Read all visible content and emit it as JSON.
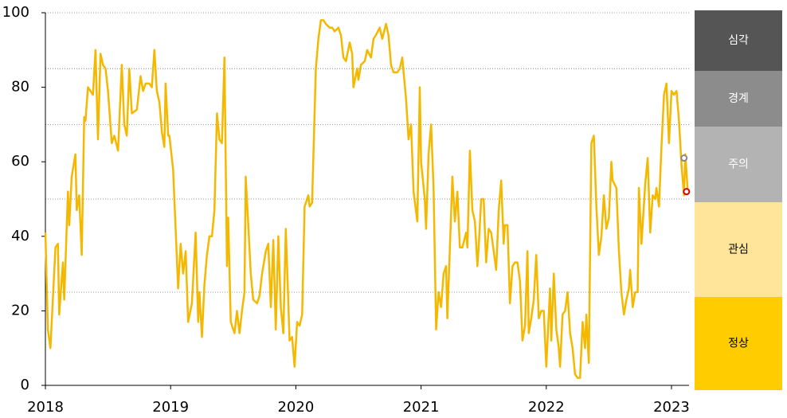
{
  "chart_data": {
    "type": "line",
    "xlim": [
      2018,
      2023.14
    ],
    "xticks": [
      2018,
      2019,
      2020,
      2021,
      2022,
      2023
    ],
    "ylim": [
      0,
      100
    ],
    "yticks": [
      0,
      20,
      40,
      60,
      80,
      100
    ],
    "grid_lines": [
      25,
      50,
      70,
      85,
      100
    ],
    "series": [
      {
        "color": "#f5b800",
        "x": [
          2018.0,
          2018.02,
          2018.04,
          2018.08,
          2018.1,
          2018.11,
          2018.14,
          2018.15,
          2018.18,
          2018.19,
          2018.21,
          2018.24,
          2018.25,
          2018.27,
          2018.29,
          2018.31,
          2018.32,
          2018.34,
          2018.38,
          2018.4,
          2018.42,
          2018.44,
          2018.46,
          2018.48,
          2018.5,
          2018.53,
          2018.55,
          2018.58,
          2018.61,
          2018.63,
          2018.65,
          2018.67,
          2018.69,
          2018.73,
          2018.76,
          2018.78,
          2018.8,
          2018.83,
          2018.85,
          2018.87,
          2018.89,
          2018.91,
          2018.93,
          2018.95,
          2018.96,
          2018.98,
          2018.99,
          2019.02,
          2019.04,
          2019.06,
          2019.08,
          2019.1,
          2019.12,
          2019.14,
          2019.17,
          2019.2,
          2019.22,
          2019.23,
          2019.25,
          2019.27,
          2019.29,
          2019.31,
          2019.33,
          2019.35,
          2019.37,
          2019.39,
          2019.41,
          2019.43,
          2019.45,
          2019.46,
          2019.48,
          2019.51,
          2019.53,
          2019.55,
          2019.57,
          2019.59,
          2019.6,
          2019.62,
          2019.64,
          2019.66,
          2019.69,
          2019.71,
          2019.73,
          2019.76,
          2019.78,
          2019.8,
          2019.82,
          2019.84,
          2019.86,
          2019.88,
          2019.9,
          2019.92,
          2019.94,
          2019.95,
          2019.97,
          2019.99,
          2020.01,
          2020.03,
          2020.05,
          2020.07,
          2020.1,
          2020.11,
          2020.13,
          2020.16,
          2020.18,
          2020.2,
          2020.22,
          2020.24,
          2020.27,
          2020.29,
          2020.31,
          2020.34,
          2020.36,
          2020.38,
          2020.4,
          2020.43,
          2020.45,
          2020.46,
          2020.49,
          2020.5,
          2020.52,
          2020.55,
          2020.57,
          2020.6,
          2020.62,
          2020.64,
          2020.67,
          2020.69,
          2020.72,
          2020.74,
          2020.76,
          2020.78,
          2020.81,
          2020.83,
          2020.85,
          2020.88,
          2020.9,
          2020.92,
          2020.94,
          2020.97,
          2020.99,
          2021.0,
          2021.03,
          2021.04,
          2021.06,
          2021.08,
          2021.1,
          2021.12,
          2021.14,
          2021.16,
          2021.18,
          2021.2,
          2021.21,
          2021.24,
          2021.25,
          2021.27,
          2021.29,
          2021.31,
          2021.33,
          2021.36,
          2021.37,
          2021.39,
          2021.41,
          2021.43,
          2021.45,
          2021.46,
          2021.48,
          2021.5,
          2021.52,
          2021.54,
          2021.56,
          2021.58,
          2021.6,
          2021.62,
          2021.64,
          2021.66,
          2021.67,
          2021.69,
          2021.71,
          2021.73,
          2021.75,
          2021.77,
          2021.79,
          2021.81,
          2021.83,
          2021.85,
          2021.86,
          2021.88,
          2021.9,
          2021.92,
          2021.94,
          2021.96,
          2021.98,
          2022.0,
          2022.03,
          2022.04,
          2022.06,
          2022.08,
          2022.1,
          2022.11,
          2022.13,
          2022.15,
          2022.17,
          2022.19,
          2022.21,
          2022.23,
          2022.25,
          2022.27,
          2022.29,
          2022.31,
          2022.32,
          2022.34,
          2022.36,
          2022.38,
          2022.4,
          2022.42,
          2022.44,
          2022.46,
          2022.48,
          2022.5,
          2022.52,
          2022.53,
          2022.56,
          2022.58,
          2022.6,
          2022.62,
          2022.64,
          2022.66,
          2022.67,
          2022.69,
          2022.71,
          2022.73,
          2022.74,
          2022.76,
          2022.79,
          2022.81,
          2022.83,
          2022.85,
          2022.87,
          2022.88,
          2022.9,
          2022.92,
          2022.94,
          2022.96,
          2022.98,
          2023.0,
          2023.02,
          2023.04,
          2023.06,
          2023.08,
          2023.1,
          2023.11,
          2023.13
        ],
        "values": [
          41,
          15,
          10,
          37,
          38,
          19,
          33,
          23,
          52,
          43,
          56,
          62,
          47,
          51,
          35,
          72,
          71,
          80,
          78,
          90,
          66,
          89,
          86,
          85,
          79,
          65,
          67,
          63,
          86,
          70,
          67,
          85,
          73,
          74,
          83,
          79,
          81,
          81,
          80,
          90,
          79,
          76,
          68,
          64,
          81,
          67,
          67,
          58,
          42,
          26,
          38,
          30,
          36,
          17,
          22,
          41,
          17,
          25,
          13,
          27,
          35,
          40,
          40,
          47,
          73,
          66,
          65,
          88,
          32,
          45,
          17,
          14,
          20,
          14,
          20,
          25,
          56,
          43,
          30,
          23,
          22,
          24,
          30,
          36,
          38,
          21,
          39,
          15,
          40,
          21,
          14,
          42,
          22,
          12,
          13,
          5,
          17,
          16,
          19,
          48,
          51,
          48,
          49,
          85,
          93,
          98,
          98,
          97,
          96,
          96,
          95,
          96,
          94,
          88,
          87,
          92,
          89,
          80,
          85,
          82,
          86,
          87,
          90,
          88,
          93,
          94,
          96,
          93,
          97,
          94,
          86,
          84,
          84,
          85,
          88,
          77,
          66,
          70,
          52,
          44,
          80,
          60,
          50,
          42,
          62,
          70,
          53,
          15,
          25,
          21,
          30,
          32,
          18,
          46,
          56,
          44,
          52,
          37,
          37,
          41,
          37,
          63,
          47,
          44,
          32,
          37,
          50,
          50,
          33,
          42,
          41,
          36,
          31,
          47,
          55,
          38,
          43,
          43,
          22,
          32,
          33,
          33,
          28,
          12,
          16,
          36,
          14,
          18,
          23,
          35,
          18,
          20,
          20,
          5,
          26,
          12,
          30,
          15,
          10,
          5,
          19,
          20,
          25,
          14,
          10,
          3,
          2,
          2,
          17,
          10,
          19,
          6,
          65,
          67,
          48,
          35,
          40,
          51,
          42,
          45,
          60,
          55,
          53,
          36,
          25,
          19,
          23,
          26,
          31,
          21,
          25,
          25,
          53,
          38,
          54,
          61,
          41,
          51,
          50,
          53,
          48,
          64,
          78,
          81,
          65,
          79,
          78,
          79,
          71,
          59,
          51,
          62,
          52
        ]
      }
    ],
    "markers": [
      {
        "x": 2023.1,
        "value": 61,
        "color": "#888888"
      },
      {
        "x": 2023.12,
        "value": 52,
        "color": "#e00000"
      }
    ],
    "zones": [
      {
        "label": "심각",
        "color": "#555555"
      },
      {
        "label": "경계",
        "color": "#8c8c8c"
      },
      {
        "label": "주의",
        "color": "#b3b3b3"
      },
      {
        "label": "관심",
        "color": "#ffe599"
      },
      {
        "label": "정상",
        "color": "#ffcc00"
      }
    ]
  }
}
